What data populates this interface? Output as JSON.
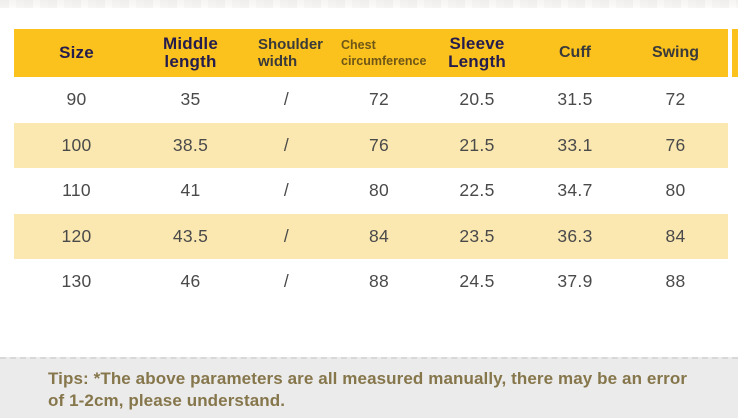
{
  "table": {
    "columns": [
      {
        "label": "Size"
      },
      {
        "label": "Middle length"
      },
      {
        "label": "Shoulder width"
      },
      {
        "label": "Chest circumference"
      },
      {
        "label": "Sleeve Length"
      },
      {
        "label": "Cuff"
      },
      {
        "label": "Swing"
      }
    ],
    "rows": [
      [
        "90",
        "35",
        "/",
        "72",
        "20.5",
        "31.5",
        "72"
      ],
      [
        "100",
        "38.5",
        "/",
        "76",
        "21.5",
        "33.1",
        "76"
      ],
      [
        "110",
        "41",
        "/",
        "80",
        "22.5",
        "34.7",
        "80"
      ],
      [
        "120",
        "43.5",
        "/",
        "84",
        "23.5",
        "36.3",
        "84"
      ],
      [
        "130",
        "46",
        "/",
        "88",
        "24.5",
        "37.9",
        "88"
      ]
    ]
  },
  "tips": {
    "text": "Tips: *The above parameters are all measured manually, there may be an error of 1-2cm, please understand."
  },
  "colors": {
    "header_yellow": "#FBC21D",
    "row_cream": "#FBE8B0",
    "header_text_navy": "#251C4E",
    "header_text_dark": "#3A3A3A",
    "header_text_brown": "#6F5617",
    "cell_text": "#4A4A4A",
    "tips_background": "#EBEBEB",
    "tips_text": "#86764B"
  }
}
